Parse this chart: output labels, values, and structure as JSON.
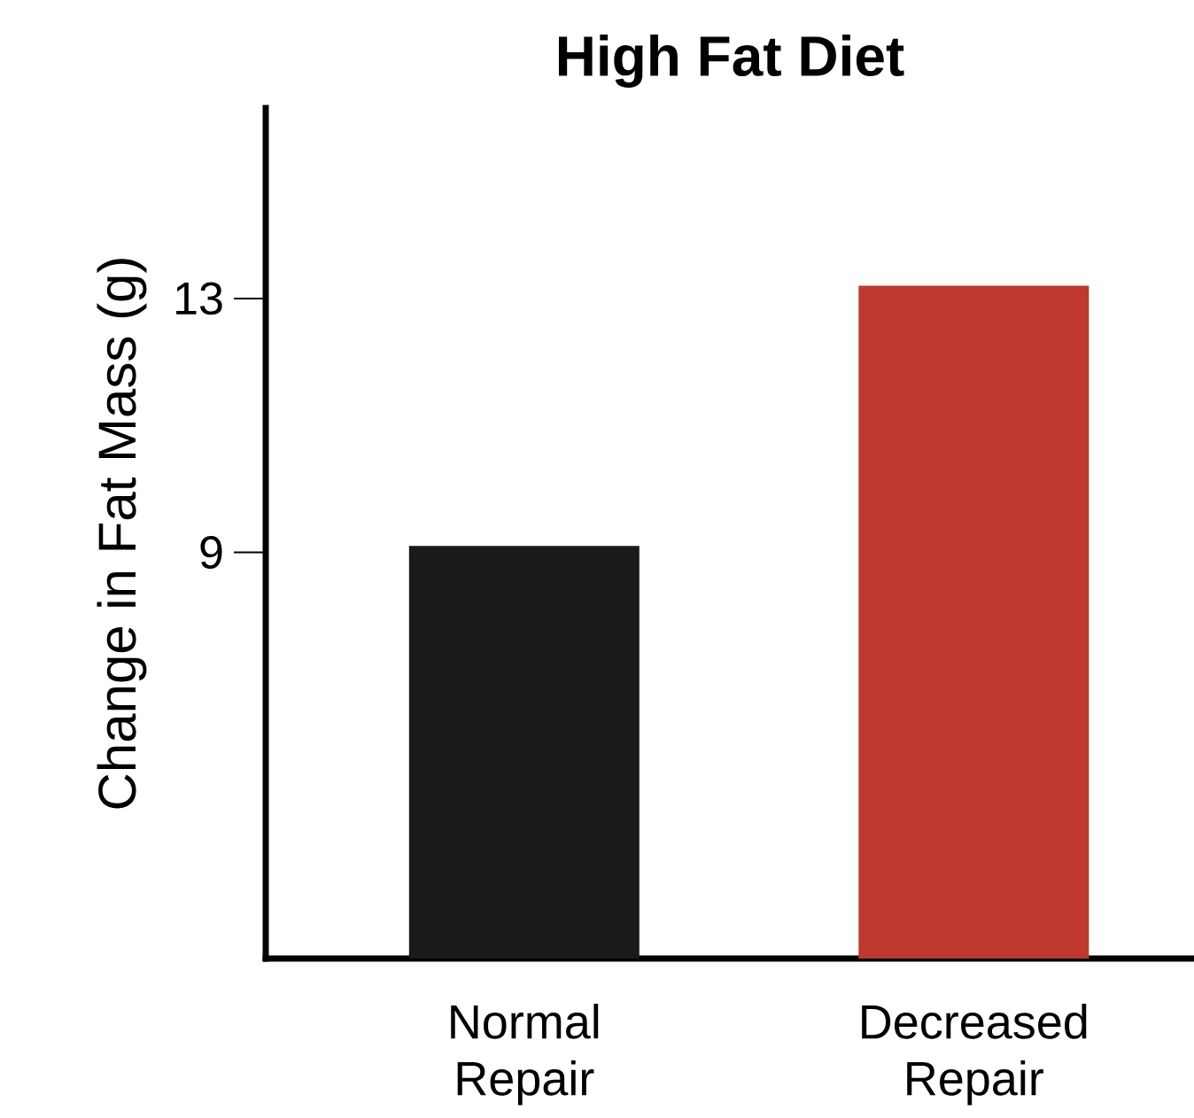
{
  "chart_data": {
    "type": "bar",
    "title": "High Fat Diet",
    "ylabel": "Change in Fat Mass (g)",
    "categories": [
      "Normal Repair",
      "Decreased Repair"
    ],
    "values": [
      9.1,
      13.2
    ],
    "colors": [
      "#1a1a1a",
      "#c0392f"
    ],
    "ylim": [
      2.6,
      16
    ],
    "yticks": [
      9,
      13
    ],
    "grid": false
  }
}
